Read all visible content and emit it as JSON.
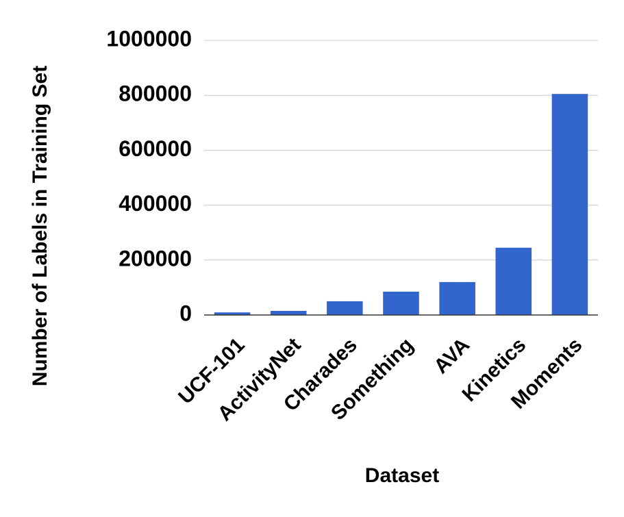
{
  "chart_data": {
    "type": "bar",
    "x_label": "Dataset",
    "y_label": "Number of Labels in Training Set",
    "categories": [
      "UCF-101",
      "ActivityNet",
      "Charades",
      "Something",
      "AVA",
      "Kinetics",
      "Moments"
    ],
    "values": [
      9500,
      15000,
      50000,
      85000,
      120000,
      245000,
      805000
    ],
    "color": "#3366cc",
    "ylim": [
      0,
      1000000
    ],
    "yticks": [
      0,
      200000,
      400000,
      600000,
      800000,
      1000000
    ],
    "grid": true
  }
}
